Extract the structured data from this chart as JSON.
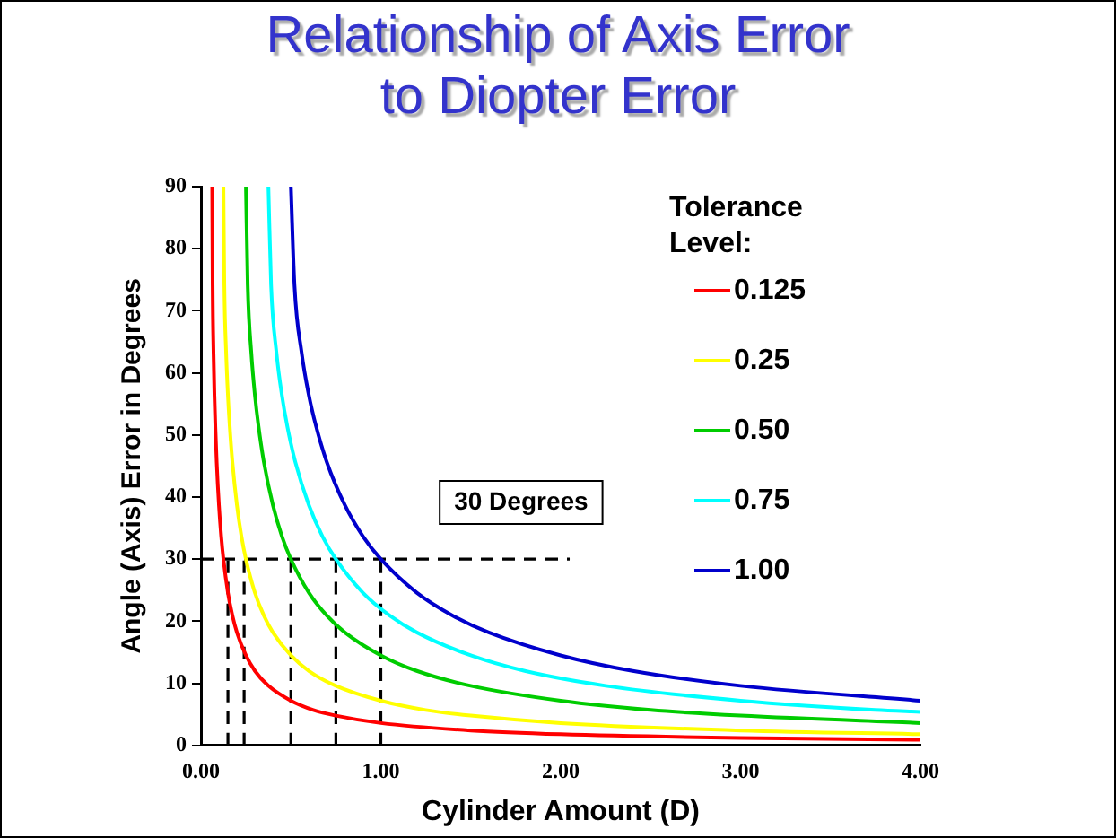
{
  "chart_data": {
    "type": "line",
    "title": "Relationship of Axis Error to Diopter Error",
    "xlabel": "Cylinder Amount (D)",
    "ylabel": "Angle (Axis) Error in Degrees",
    "legend_title": "Tolerance Level:",
    "legend": "top right",
    "grid": false,
    "marker": "none",
    "line_style": "solid",
    "xlim": [
      0,
      4
    ],
    "xticks": [
      {
        "value": 0,
        "label": "0.00"
      },
      {
        "value": 1,
        "label": "1.00"
      },
      {
        "value": 2,
        "label": "2.00"
      },
      {
        "value": 3,
        "label": "3.00"
      },
      {
        "value": 4,
        "label": "4.00"
      }
    ],
    "ylim": [
      0,
      90
    ],
    "yticks": [
      0,
      10,
      20,
      30,
      40,
      50,
      60,
      70,
      80,
      90
    ],
    "annotations": [
      "30 Degrees"
    ],
    "series": [
      {
        "name": "0.125",
        "color": "#ff0000",
        "x": [
          0.0625,
          0.065,
          0.07,
          0.075,
          0.08,
          0.0875,
          0.1,
          0.1125,
          0.125,
          0.15,
          0.175,
          0.2,
          0.25,
          0.3,
          0.375,
          0.5,
          0.625,
          0.75,
          1,
          1.5,
          2,
          3,
          4
        ],
        "values": [
          90,
          74.1,
          63.2,
          56.4,
          51.4,
          45.6,
          38.7,
          33.7,
          30,
          24.6,
          20.9,
          18.2,
          14.5,
          12.0,
          9.6,
          7.2,
          5.7,
          4.8,
          3.6,
          2.4,
          1.8,
          1.2,
          0.9
        ]
      },
      {
        "name": "0.25",
        "color": "#ffff00",
        "x": [
          0.125,
          0.13,
          0.14,
          0.15,
          0.16,
          0.175,
          0.2,
          0.225,
          0.25,
          0.3,
          0.35,
          0.4,
          0.5,
          0.6,
          0.75,
          1,
          1.25,
          1.5,
          2,
          3,
          4
        ],
        "values": [
          90,
          74.1,
          63.2,
          56.4,
          51.4,
          45.6,
          38.7,
          33.7,
          30,
          24.6,
          20.9,
          18.2,
          14.5,
          12.0,
          9.6,
          7.2,
          5.7,
          4.8,
          3.6,
          2.4,
          1.8
        ]
      },
      {
        "name": "0.50",
        "color": "#00cc00",
        "x": [
          0.25,
          0.26,
          0.28,
          0.3,
          0.32,
          0.35,
          0.4,
          0.45,
          0.5,
          0.6,
          0.7,
          0.8,
          1,
          1.2,
          1.5,
          2,
          2.5,
          3,
          4
        ],
        "values": [
          90,
          74.1,
          63.2,
          56.4,
          51.4,
          45.6,
          38.7,
          33.7,
          30,
          24.6,
          20.9,
          18.2,
          14.5,
          12.0,
          9.6,
          7.2,
          5.7,
          4.8,
          3.6
        ]
      },
      {
        "name": "0.75",
        "color": "#00ffff",
        "x": [
          0.375,
          0.39,
          0.42,
          0.45,
          0.48,
          0.525,
          0.6,
          0.675,
          0.75,
          0.9,
          1.05,
          1.2,
          1.5,
          1.8,
          2.25,
          3,
          3.75,
          4
        ],
        "values": [
          90,
          74.1,
          63.2,
          56.4,
          51.4,
          45.6,
          38.7,
          33.7,
          30,
          24.6,
          20.9,
          18.2,
          14.5,
          12.0,
          9.6,
          7.2,
          5.7,
          5.4
        ]
      },
      {
        "name": "1.00",
        "color": "#0000cc",
        "x": [
          0.5,
          0.52,
          0.56,
          0.6,
          0.64,
          0.7,
          0.8,
          0.9,
          1,
          1.2,
          1.4,
          1.6,
          2,
          2.4,
          3,
          4
        ],
        "values": [
          90,
          74.1,
          63.2,
          56.4,
          51.4,
          45.6,
          38.7,
          33.7,
          30,
          24.6,
          20.9,
          18.2,
          14.5,
          12.0,
          9.6,
          7.2
        ]
      },
      {
        "type": "line",
        "line_style": "dashed",
        "color": "#000000",
        "x": [
          0,
          2.05
        ],
        "values": [
          30,
          30
        ]
      },
      {
        "type": "line",
        "line_style": "dashed",
        "color": "#000000",
        "x": [
          0.15,
          0.15
        ],
        "values": [
          0,
          30
        ]
      },
      {
        "type": "line",
        "line_style": "dashed",
        "color": "#000000",
        "x": [
          0.24,
          0.24
        ],
        "values": [
          0,
          30
        ]
      },
      {
        "type": "line",
        "line_style": "dashed",
        "color": "#000000",
        "x": [
          0.5,
          0.5
        ],
        "values": [
          0,
          30
        ]
      },
      {
        "type": "line",
        "line_style": "dashed",
        "color": "#000000",
        "x": [
          0.75,
          0.75
        ],
        "values": [
          0,
          30
        ]
      },
      {
        "type": "line",
        "line_style": "dashed",
        "color": "#000000",
        "x": [
          1,
          1
        ],
        "values": [
          0,
          30
        ]
      }
    ]
  }
}
